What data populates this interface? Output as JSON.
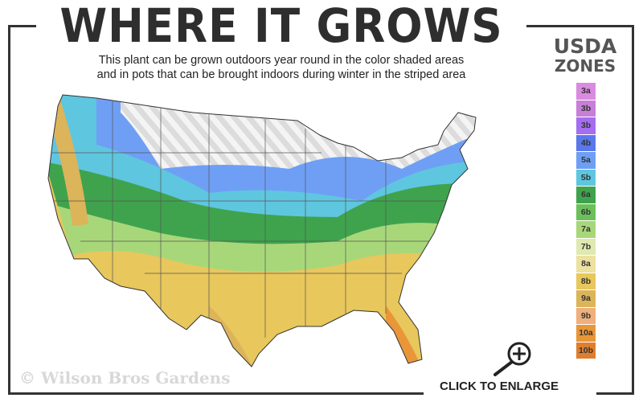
{
  "title": "WHERE IT GROWS",
  "subtitle_line1": "This plant can be grown outdoors year round in the color shaded areas",
  "subtitle_line2": "and in pots that can be brought indoors during winter in the striped area",
  "legend": {
    "title_line1": "USDA",
    "title_line2": "ZONES",
    "zones": [
      {
        "label": "3a",
        "color": "#d98be0"
      },
      {
        "label": "3b",
        "color": "#c77fd8"
      },
      {
        "label": "3b",
        "color": "#a56ef0"
      },
      {
        "label": "4b",
        "color": "#5a78ea"
      },
      {
        "label": "5a",
        "color": "#6f9ff5"
      },
      {
        "label": "5b",
        "color": "#5fc6df"
      },
      {
        "label": "6a",
        "color": "#3fa34d"
      },
      {
        "label": "6b",
        "color": "#6cc05a"
      },
      {
        "label": "7a",
        "color": "#a8d77a"
      },
      {
        "label": "7b",
        "color": "#dfe9b0"
      },
      {
        "label": "8a",
        "color": "#ede1a0"
      },
      {
        "label": "8b",
        "color": "#e8c75c"
      },
      {
        "label": "9a",
        "color": "#dcb45a"
      },
      {
        "label": "9b",
        "color": "#efb07c"
      },
      {
        "label": "10a",
        "color": "#e99638"
      },
      {
        "label": "10b",
        "color": "#e07e2e"
      }
    ]
  },
  "copyright": "© Wilson Bros Gardens",
  "enlarge_label": "CLICK TO ENLARGE",
  "enlarge_icon": "magnifier-plus-icon"
}
